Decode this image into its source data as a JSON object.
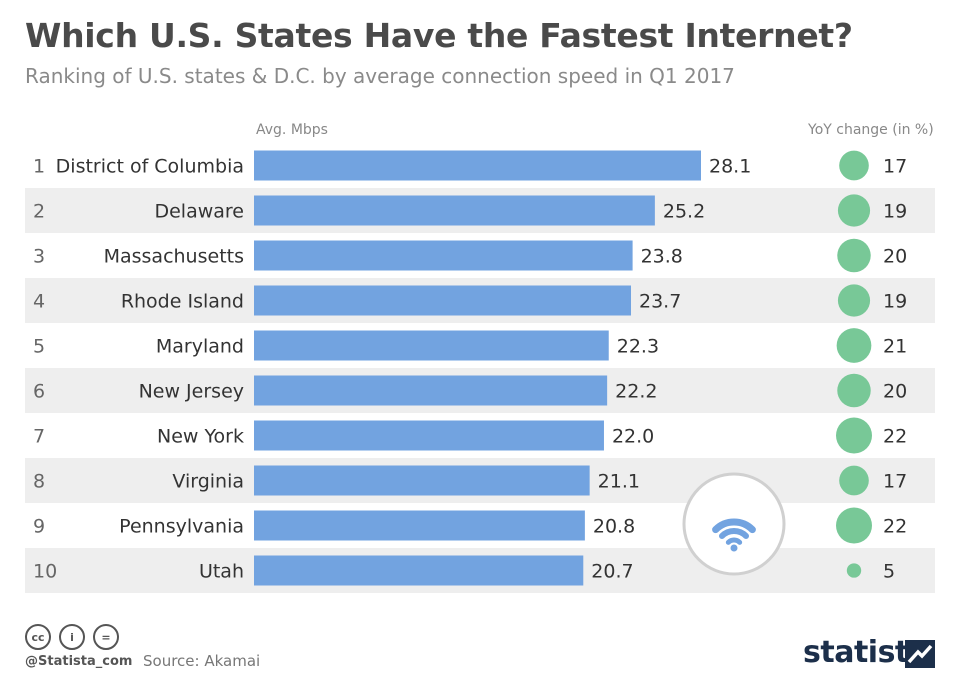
{
  "header": {
    "title": "Which U.S. States Have the Fastest Internet?",
    "subtitle": "Ranking of U.S. states & D.C. by average connection speed in Q1 2017"
  },
  "columns": {
    "speed_label": "Avg. Mbps",
    "yoy_label": "YoY change (in %)"
  },
  "chart_data": {
    "type": "bar",
    "orientation": "horizontal",
    "categories": [
      "District of Columbia",
      "Delaware",
      "Massachusetts",
      "Rhode Island",
      "Maryland",
      "New Jersey",
      "New York",
      "Virginia",
      "Pennsylvania",
      "Utah"
    ],
    "ranks": [
      "1",
      "2",
      "3",
      "4",
      "5",
      "6",
      "7",
      "8",
      "9",
      "10"
    ],
    "series": [
      {
        "values": [
          28.1,
          25.2,
          23.8,
          23.7,
          22.3,
          22.2,
          22.0,
          21.1,
          20.8,
          20.7
        ]
      }
    ],
    "value_labels": [
      "28.1",
      "25.2",
      "23.8",
      "23.7",
      "22.3",
      "22.2",
      "22.0",
      "21.1",
      "20.8",
      "20.7"
    ],
    "yoy_change": [
      17,
      19,
      20,
      19,
      21,
      20,
      22,
      17,
      22,
      5
    ],
    "xlim": [
      0,
      28.1
    ],
    "bar_color": "#72a3e0",
    "yoy_color": "#78c897",
    "stripe_color": "#eeeeee",
    "grid": false
  },
  "footer": {
    "icons": [
      "creative-commons-icon",
      "attribution-icon",
      "no-derivatives-icon"
    ],
    "cc_glyphs": [
      "cc",
      "i",
      "="
    ],
    "handle": "@Statista_com",
    "source": "Source: Akamai",
    "brand": "statista",
    "brand_color": "#1c2f4a"
  },
  "decoration": {
    "icon": "wifi-icon",
    "color": "#72a3e0",
    "ring_color": "#d0d0d0"
  }
}
